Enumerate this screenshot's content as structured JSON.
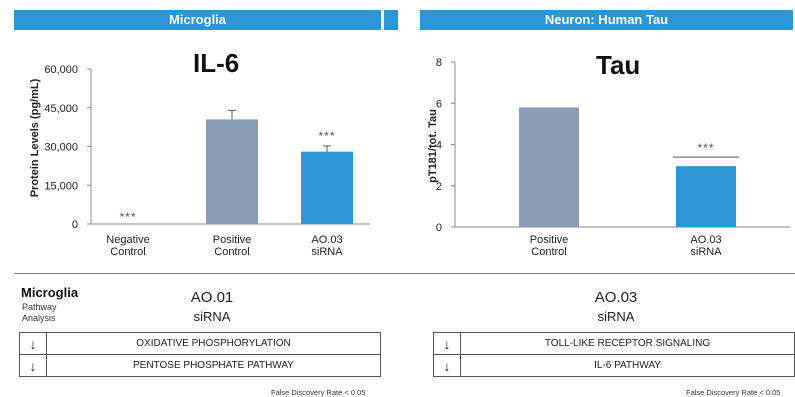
{
  "headers": {
    "left": "Microglia",
    "right": "Neuron: Human Tau"
  },
  "chart_data": [
    {
      "type": "bar",
      "title": "IL-6",
      "ylabel": "Protein Levels (pg/mL)",
      "xlabel": "",
      "categories": [
        [
          "Negative",
          "Control"
        ],
        [
          "Positive",
          "Control"
        ],
        [
          "AO.03",
          "siRNA"
        ]
      ],
      "values": [
        0,
        40500,
        28000
      ],
      "errors": [
        0,
        3500,
        2200
      ],
      "colors": [
        "#8a9db5",
        "#8a9db5",
        "#2b95d6"
      ],
      "annotations": [
        "***",
        "",
        "***"
      ],
      "ylim": [
        0,
        60000
      ],
      "yticks": [
        "0",
        "15,000",
        "30,000",
        "45,000",
        "60,000"
      ],
      "ytick_values": [
        0,
        15000,
        30000,
        45000,
        60000
      ],
      "grid": false
    },
    {
      "type": "bar",
      "title": "Tau",
      "ylabel": "pT181/tot. Tau",
      "xlabel": "",
      "categories": [
        [
          "Positive",
          "Control"
        ],
        [
          "AO.03",
          "siRNA"
        ]
      ],
      "values": [
        5.8,
        2.95
      ],
      "colors": [
        "#8a9db5",
        "#2b95d6"
      ],
      "annotations": [
        "",
        "***"
      ],
      "ylim": [
        0,
        8
      ],
      "yticks": [
        "0",
        "2",
        "4",
        "6",
        "8"
      ],
      "ytick_values": [
        0,
        2,
        4,
        6,
        8
      ],
      "grid": false
    }
  ],
  "pathway": {
    "title": "Microglia",
    "subtitle_line1": "Pathway",
    "subtitle_line2": "Analysis",
    "left": {
      "name": "AO.01",
      "sub": "siRNA",
      "rows": [
        {
          "arrow": "↓",
          "label": "OXIDATIVE PHOSPHORYLATION"
        },
        {
          "arrow": "↓",
          "label": "PENTOSE PHOSPHATE PATHWAY"
        }
      ],
      "note": "False Discovery Rate < 0.05"
    },
    "right": {
      "name": "AO.03",
      "sub": "siRNA",
      "rows": [
        {
          "arrow": "↓",
          "label": "TOLL-LIKE RECEPTOR SIGNALING"
        },
        {
          "arrow": "↓",
          "label": "IL-6 PATHWAY"
        }
      ],
      "note": "False Discovery Rate < 0.05"
    }
  }
}
